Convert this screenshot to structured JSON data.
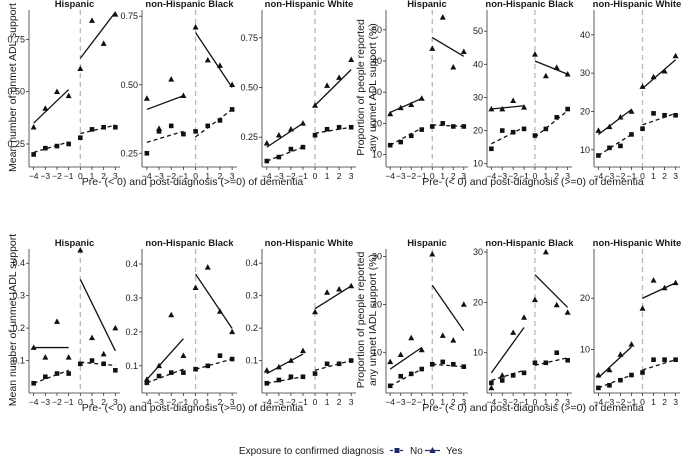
{
  "x_ticks": [
    "-4",
    "-3",
    "-2",
    "-1",
    "0",
    "1",
    "2",
    "3"
  ],
  "x_range": [
    -4.4,
    3.4
  ],
  "group_titles": [
    "Hispanic",
    "non-Hispanic Black",
    "non-Hispanic White"
  ],
  "legend": {
    "title": "Exposure to confirmed diagnosis",
    "no_label": "No",
    "yes_label": "Yes"
  },
  "colors": {
    "marker": "#111111",
    "line": "#111111",
    "diagnosis_line": "#b8b8b8",
    "legend_no": "#1f2a6b",
    "legend_yes": "#1f2a6b"
  },
  "chart_data": [
    {
      "type": "scatter",
      "title": "Mean number of unmet ADL support",
      "xlabel": "Pre- (< 0) and post-diagnosis (>=0) of dementia",
      "ylabel": "Mean number of unmet ADL support",
      "x": [
        -4,
        -3,
        -2,
        -1,
        0,
        1,
        2,
        3
      ],
      "panels": [
        {
          "group": "Hispanic",
          "ylim": [
            0.14,
            0.9
          ],
          "yticks": [
            0.25,
            0.5,
            0.75
          ],
          "ytick_labels": [
            "0.25",
            "0.50",
            "0.75"
          ],
          "series": [
            {
              "name": "No",
              "points": [
                0.2,
                0.23,
                0.24,
                0.25,
                0.28,
                0.32,
                0.33,
                0.33
              ],
              "fit": {
                "pre": [
                  0.21,
                  0.26
                ],
                "post": [
                  0.3,
                  0.34
                ]
              }
            },
            {
              "name": "Yes",
              "points": [
                0.33,
                0.42,
                0.5,
                0.48,
                0.61,
                0.84,
                0.73,
                0.87
              ],
              "fit": {
                "pre": [
                  0.35,
                  0.51
                ],
                "post": [
                  0.66,
                  0.88
                ]
              }
            }
          ]
        },
        {
          "group": "non-Hispanic Black",
          "ylim": [
            0.2,
            0.78
          ],
          "yticks": [
            0.25,
            0.5,
            0.75
          ],
          "ytick_labels": [
            "0.25",
            "0.50",
            "0.75"
          ],
          "series": [
            {
              "name": "No",
              "points": [
                0.25,
                0.33,
                0.35,
                0.32,
                0.33,
                0.35,
                0.37,
                0.41
              ],
              "fit": {
                "pre": [
                  0.29,
                  0.33
                ],
                "post": [
                  0.31,
                  0.41
                ]
              }
            },
            {
              "name": "Yes",
              "points": [
                0.45,
                0.34,
                0.52,
                0.46,
                0.71,
                0.59,
                0.57,
                0.5
              ],
              "fit": {
                "pre": [
                  0.41,
                  0.46
                ],
                "post": [
                  0.69,
                  0.49
                ]
              }
            }
          ]
        },
        {
          "group": "non-Hispanic White",
          "ylim": [
            0.1,
            0.9
          ],
          "yticks": [
            0.25,
            0.5,
            0.75
          ],
          "ytick_labels": [
            "0.25",
            "0.50",
            "0.75"
          ],
          "series": [
            {
              "name": "No",
              "points": [
                0.13,
                0.15,
                0.19,
                0.2,
                0.26,
                0.29,
                0.3,
                0.3
              ],
              "fit": {
                "pre": [
                  0.13,
                  0.2
                ],
                "post": [
                  0.27,
                  0.3
                ]
              }
            },
            {
              "name": "Yes",
              "points": [
                0.22,
                0.26,
                0.29,
                0.32,
                0.41,
                0.51,
                0.55,
                0.64
              ],
              "fit": {
                "pre": [
                  0.2,
                  0.32
                ],
                "post": [
                  0.41,
                  0.59
                ]
              }
            }
          ]
        }
      ]
    },
    {
      "type": "scatter",
      "title": "Proportion of people reported any unmet ADL support (%)",
      "xlabel": "Pre- (< 0) and post-diagnosis (>=0) of dementia",
      "ylabel": "Proportion of people reported any unmet ADL support (%)",
      "x": [
        -4,
        -3,
        -2,
        -1,
        0,
        1,
        2,
        3
      ],
      "panels": [
        {
          "group": "Hispanic",
          "ylim": [
            6,
            57
          ],
          "yticks": [
            10,
            20,
            30,
            40,
            50
          ],
          "ytick_labels": [
            "10",
            "20",
            "30",
            "40",
            "50"
          ],
          "series": [
            {
              "name": "No",
              "points": [
                13,
                14,
                16,
                18,
                19,
                20,
                19,
                19
              ],
              "fit": {
                "pre": [
                  13,
                  18.5
                ],
                "post": [
                  19.5,
                  19
                ]
              }
            },
            {
              "name": "Yes",
              "points": [
                23,
                25,
                26,
                28,
                44,
                54,
                38,
                43
              ],
              "fit": {
                "pre": [
                  23.5,
                  28
                ],
                "post": [
                  47.5,
                  41.5
                ]
              }
            }
          ]
        },
        {
          "group": "non-Hispanic Black",
          "ylim": [
            9,
            57
          ],
          "yticks": [
            10,
            20,
            30,
            40,
            50
          ],
          "ytick_labels": [
            "10",
            "20",
            "30",
            "40",
            "50"
          ],
          "series": [
            {
              "name": "No",
              "points": [
                14.5,
                20,
                19.5,
                20.5,
                18.5,
                20.5,
                24,
                26.5
              ],
              "fit": {
                "pre": [
                  16,
                  21
                ],
                "post": [
                  18,
                  26
                ]
              }
            },
            {
              "name": "Yes",
              "points": [
                26.5,
                26.5,
                29,
                27,
                43,
                36.5,
                39,
                37
              ],
              "fit": {
                "pre": [
                  26.5,
                  27.5
                ],
                "post": [
                  41,
                  37
                ]
              }
            }
          ]
        },
        {
          "group": "non-Hispanic White",
          "ylim": [
            5.5,
            47
          ],
          "yticks": [
            10,
            20,
            30,
            40
          ],
          "ytick_labels": [
            "10",
            "20",
            "30",
            "40"
          ],
          "series": [
            {
              "name": "No",
              "points": [
                8.5,
                10.5,
                11,
                14,
                15.5,
                19.5,
                19,
                19
              ],
              "fit": {
                "pre": [
                  8.5,
                  14
                ],
                "post": [
                  16.5,
                  19.5
                ]
              }
            },
            {
              "name": "Yes",
              "points": [
                15,
                16,
                18.5,
                20,
                26.5,
                29,
                30.5,
                34.5
              ],
              "fit": {
                "pre": [
                  14,
                  20.5
                ],
                "post": [
                  26,
                  33.5
                ]
              }
            }
          ]
        }
      ]
    },
    {
      "type": "scatter",
      "title": "Mean number of unmet IADL support",
      "xlabel": "Pre- (< 0) and post-diagnosis (>=0) of dementia",
      "ylabel": "Mean number of unmet IADL support",
      "x": [
        -4,
        -3,
        -2,
        -1,
        0,
        1,
        2,
        3
      ],
      "panels": [
        {
          "group": "Hispanic",
          "ylim": [
            0.0,
            0.45
          ],
          "yticks": [
            0.1,
            0.2,
            0.3,
            0.4
          ],
          "ytick_labels": [
            "0.1",
            "0.2",
            "0.3",
            "0.4"
          ],
          "series": [
            {
              "name": "No",
              "points": [
                0.03,
                0.05,
                0.06,
                0.06,
                0.09,
                0.1,
                0.09,
                0.07
              ],
              "fit": {
                "pre": [
                  0.03,
                  0.07
                ],
                "post": [
                  0.095,
                  0.085
                ]
              }
            },
            {
              "name": "Yes",
              "points": [
                0.14,
                0.11,
                0.22,
                0.11,
                0.44,
                0.17,
                0.12,
                0.2
              ],
              "fit": {
                "pre": [
                  0.14,
                  0.14
                ],
                "post": [
                  0.35,
                  0.13
                ]
              }
            }
          ]
        },
        {
          "group": "non-Hispanic Black",
          "ylim": [
            0.02,
            0.45
          ],
          "yticks": [
            0.1,
            0.2,
            0.3,
            0.4
          ],
          "ytick_labels": [
            "0.1",
            "0.2",
            "0.3",
            "0.4"
          ],
          "series": [
            {
              "name": "No",
              "points": [
                0.05,
                0.07,
                0.08,
                0.08,
                0.09,
                0.1,
                0.13,
                0.12
              ],
              "fit": {
                "pre": [
                  0.05,
                  0.09
                ],
                "post": [
                  0.09,
                  0.12
                ]
              }
            },
            {
              "name": "Yes",
              "points": [
                0.06,
                0.1,
                0.25,
                0.13,
                0.33,
                0.39,
                0.26,
                0.2
              ],
              "fit": {
                "pre": [
                  0.06,
                  0.18
                ],
                "post": [
                  0.37,
                  0.21
                ]
              }
            }
          ]
        },
        {
          "group": "non-Hispanic White",
          "ylim": [
            0.0,
            0.45
          ],
          "yticks": [
            0.1,
            0.2,
            0.3,
            0.4
          ],
          "ytick_labels": [
            "0.1",
            "0.2",
            "0.3",
            "0.4"
          ],
          "series": [
            {
              "name": "No",
              "points": [
                0.03,
                0.04,
                0.05,
                0.05,
                0.06,
                0.09,
                0.09,
                0.1
              ],
              "fit": {
                "pre": [
                  0.03,
                  0.05
                ],
                "post": [
                  0.07,
                  0.1
                ]
              }
            },
            {
              "name": "Yes",
              "points": [
                0.07,
                0.08,
                0.1,
                0.13,
                0.25,
                0.31,
                0.32,
                0.33
              ],
              "fit": {
                "pre": [
                  0.06,
                  0.12
                ],
                "post": [
                  0.26,
                  0.33
                ]
              }
            }
          ]
        }
      ]
    },
    {
      "type": "scatter",
      "title": "Proportion of people reported any unmet IADL support (%)",
      "xlabel": "Pre- (< 0) and post-diagnosis (>=0) of dementia",
      "ylabel": "Proportion of people reported any unmet IADL support (%)",
      "x": [
        -4,
        -3,
        -2,
        -1,
        0,
        1,
        2,
        3
      ],
      "panels": [
        {
          "group": "Hispanic",
          "ylim": [
            1.5,
            32
          ],
          "yticks": [
            10,
            20,
            30
          ],
          "ytick_labels": [
            "10",
            "20",
            "30"
          ],
          "series": [
            {
              "name": "No",
              "points": [
                3,
                5,
                5.5,
                6.5,
                7.5,
                8,
                7.5,
                7
              ],
              "fit": {
                "pre": [
                  3,
                  6.5
                ],
                "post": [
                  7.5,
                  7
                ]
              }
            },
            {
              "name": "Yes",
              "points": [
                8,
                9.5,
                13,
                10.5,
                30.5,
                13.5,
                12.5,
                20
              ],
              "fit": {
                "pre": [
                  6.5,
                  11
                ],
                "post": [
                  24,
                  14.5
                ]
              }
            }
          ]
        },
        {
          "group": "non-Hispanic Black",
          "ylim": [
            2,
            31
          ],
          "yticks": [
            10,
            20,
            30
          ],
          "ytick_labels": [
            "10",
            "20",
            "30"
          ],
          "series": [
            {
              "name": "No",
              "points": [
                4,
                4.5,
                5.5,
                6,
                8,
                8,
                10,
                8.5
              ],
              "fit": {
                "pre": [
                  4.5,
                  6.5
                ],
                "post": [
                  7.5,
                  9
                ]
              }
            },
            {
              "name": "Yes",
              "points": [
                3,
                5.5,
                14,
                17,
                20.5,
                30,
                19.5,
                18
              ],
              "fit": {
                "pre": [
                  6,
                  15
                ],
                "post": [
                  25.5,
                  19
                ]
              }
            }
          ]
        },
        {
          "group": "non-Hispanic White",
          "ylim": [
            1.5,
            30
          ],
          "yticks": [
            10,
            20
          ],
          "ytick_labels": [
            "10",
            "20"
          ],
          "series": [
            {
              "name": "No",
              "points": [
                2.5,
                3,
                4,
                5,
                5.5,
                8,
                8,
                8
              ],
              "fit": {
                "pre": [
                  2.5,
                  5
                ],
                "post": [
                  6,
                  8
                ]
              }
            },
            {
              "name": "Yes",
              "points": [
                5,
                6,
                9,
                11,
                18,
                23.5,
                22,
                23
              ],
              "fit": {
                "pre": [
                  4.5,
                  10.5
                ],
                "post": [
                  20,
                  23
                ]
              }
            }
          ]
        }
      ]
    }
  ]
}
